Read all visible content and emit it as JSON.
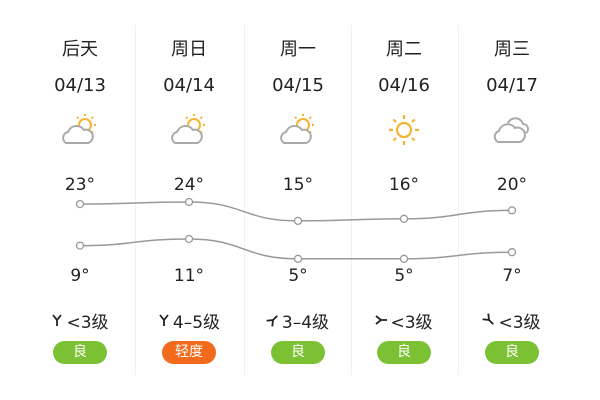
{
  "days": [
    {
      "day": "后天",
      "date": "04/13",
      "weather_icon": "partly-cloudy-icon",
      "high": "23°",
      "low": "9°",
      "high_value": 23,
      "low_value": 9,
      "wind_dir": "north",
      "wind": "<3级",
      "aqi": "良",
      "aqi_color": "#7cc033"
    },
    {
      "day": "周日",
      "date": "04/14",
      "weather_icon": "partly-cloudy-icon",
      "high": "24°",
      "low": "11°",
      "high_value": 24,
      "low_value": 11,
      "wind_dir": "north",
      "wind": "4–5级",
      "aqi": "轻度",
      "aqi_color": "#f26b1d"
    },
    {
      "day": "周一",
      "date": "04/15",
      "weather_icon": "partly-cloudy-icon",
      "high": "15°",
      "low": "5°",
      "high_value": 15,
      "low_value": 5,
      "wind_dir": "southwest",
      "wind": "3–4级",
      "aqi": "良",
      "aqi_color": "#7cc033"
    },
    {
      "day": "周二",
      "date": "04/16",
      "weather_icon": "sunny-icon",
      "high": "16°",
      "low": "5°",
      "high_value": 16,
      "low_value": 5,
      "wind_dir": "west",
      "wind": "<3级",
      "aqi": "良",
      "aqi_color": "#7cc033"
    },
    {
      "day": "周三",
      "date": "04/17",
      "weather_icon": "cloudy-icon",
      "high": "20°",
      "low": "7°",
      "high_value": 20,
      "low_value": 7,
      "wind_dir": "northwest",
      "wind": "<3级",
      "aqi": "良",
      "aqi_color": "#7cc033"
    }
  ],
  "colors": {
    "line": "#999999",
    "sun": "#f5b335",
    "cloud": "#aaaaaa"
  }
}
